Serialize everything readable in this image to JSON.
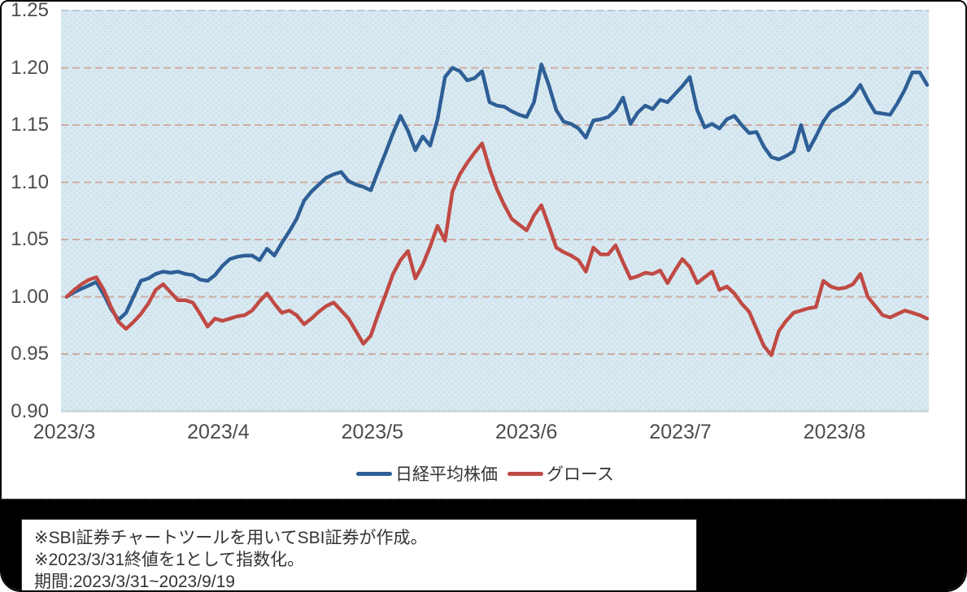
{
  "chart_data": {
    "type": "line",
    "title": "",
    "x_axis": {
      "tick_labels": [
        "2023/3",
        "2023/4",
        "2023/5",
        "2023/6",
        "2023/7",
        "2023/8"
      ],
      "range_start": "2023/3/31",
      "range_end": "2023/9/19"
    },
    "y_axis": {
      "tick_labels": [
        "1.25",
        "1.20",
        "1.15",
        "1.10",
        "1.05",
        "1.00",
        "0.95",
        "0.90"
      ],
      "min": 0.9,
      "max": 1.25,
      "gridlines": "dashed"
    },
    "legend_position": "bottom-center",
    "plot_bg": "#d9e9f1",
    "plot_dot_color": "#b7d3e3",
    "gridline_color": "#cfa69b",
    "top_gridline_color": "#b7cbd9",
    "baseline_color": "#c5cbd1",
    "series": [
      {
        "name": "日経平均株価",
        "color": "#2e5f96",
        "values": [
          1.0,
          1.004,
          1.007,
          1.01,
          1.013,
          1.002,
          0.989,
          0.98,
          0.986,
          1.0,
          1.014,
          1.016,
          1.02,
          1.022,
          1.021,
          1.022,
          1.02,
          1.019,
          1.015,
          1.014,
          1.019,
          1.027,
          1.033,
          1.035,
          1.036,
          1.036,
          1.032,
          1.042,
          1.036,
          1.047,
          1.057,
          1.068,
          1.084,
          1.092,
          1.098,
          1.104,
          1.107,
          1.109,
          1.101,
          1.098,
          1.096,
          1.093,
          1.11,
          1.126,
          1.143,
          1.158,
          1.145,
          1.128,
          1.14,
          1.132,
          1.155,
          1.192,
          1.2,
          1.197,
          1.189,
          1.191,
          1.197,
          1.17,
          1.167,
          1.166,
          1.162,
          1.159,
          1.157,
          1.17,
          1.203,
          1.185,
          1.163,
          1.153,
          1.151,
          1.147,
          1.139,
          1.154,
          1.155,
          1.157,
          1.163,
          1.174,
          1.151,
          1.161,
          1.167,
          1.164,
          1.172,
          1.17,
          1.177,
          1.184,
          1.192,
          1.163,
          1.148,
          1.151,
          1.147,
          1.155,
          1.158,
          1.15,
          1.143,
          1.144,
          1.131,
          1.122,
          1.12,
          1.123,
          1.127,
          1.15,
          1.128,
          1.14,
          1.153,
          1.162,
          1.166,
          1.17,
          1.176,
          1.185,
          1.172,
          1.161,
          1.16,
          1.159,
          1.169,
          1.181,
          1.196,
          1.196,
          1.185
        ]
      },
      {
        "name": "グロース",
        "color": "#c04a44",
        "values": [
          1.0,
          1.006,
          1.011,
          1.015,
          1.017,
          1.006,
          0.991,
          0.978,
          0.972,
          0.978,
          0.985,
          0.994,
          1.006,
          1.011,
          1.004,
          0.997,
          0.997,
          0.995,
          0.985,
          0.974,
          0.981,
          0.979,
          0.981,
          0.983,
          0.984,
          0.988,
          0.996,
          1.003,
          0.994,
          0.986,
          0.988,
          0.984,
          0.976,
          0.981,
          0.987,
          0.992,
          0.995,
          0.988,
          0.981,
          0.97,
          0.959,
          0.966,
          0.985,
          1.002,
          1.02,
          1.032,
          1.04,
          1.016,
          1.028,
          1.044,
          1.062,
          1.049,
          1.092,
          1.107,
          1.117,
          1.126,
          1.134,
          1.112,
          1.094,
          1.08,
          1.068,
          1.063,
          1.058,
          1.071,
          1.08,
          1.062,
          1.043,
          1.039,
          1.036,
          1.032,
          1.022,
          1.043,
          1.037,
          1.037,
          1.045,
          1.03,
          1.016,
          1.018,
          1.021,
          1.02,
          1.023,
          1.012,
          1.023,
          1.033,
          1.026,
          1.012,
          1.017,
          1.022,
          1.006,
          1.009,
          1.003,
          0.994,
          0.987,
          0.972,
          0.957,
          0.949,
          0.97,
          0.979,
          0.986,
          0.988,
          0.99,
          0.991,
          1.014,
          1.009,
          1.007,
          1.008,
          1.011,
          1.02,
          1.0,
          0.992,
          0.984,
          0.982,
          0.985,
          0.988,
          0.986,
          0.984,
          0.981
        ]
      }
    ]
  },
  "legend": {
    "series1": "日経平均株価",
    "series2": "グロース"
  },
  "footer": {
    "note1": "※SBI証券チャートツールを用いてSBI証券が作成。",
    "note2": "※2023/3/31終値を1として指数化。",
    "note3": "期間:2023/3/31~2023/9/19"
  }
}
